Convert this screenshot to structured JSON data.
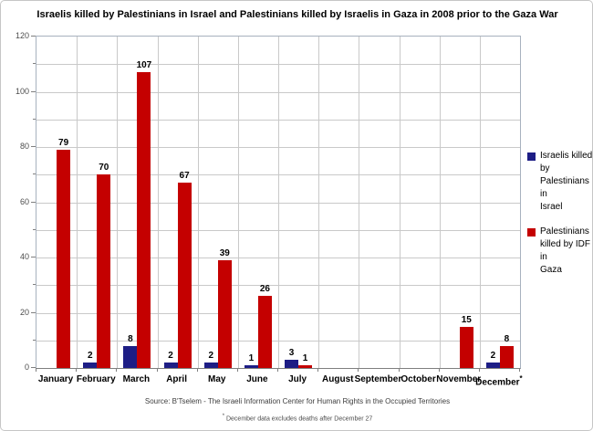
{
  "title": "Israelis killed by Palestinians in Israel and Palestinians killed by Israelis in Gaza in 2008 prior to the Gaza War",
  "chart_data": {
    "type": "bar",
    "categories": [
      "January",
      "February",
      "March",
      "April",
      "May",
      "June",
      "July",
      "August",
      "September",
      "October",
      "November",
      "December"
    ],
    "category_footnote": {
      "index": 11,
      "marker": "*"
    },
    "series": [
      {
        "name": "Israelis killed by\nPalestinians in\nIsrael",
        "color": "#1d1d85",
        "values": [
          0,
          2,
          8,
          2,
          2,
          1,
          3,
          0,
          0,
          0,
          0,
          2
        ]
      },
      {
        "name": "Palestinians\nkilled by IDF in\nGaza",
        "color": "#c40000",
        "values": [
          79,
          70,
          107,
          67,
          39,
          26,
          1,
          0,
          0,
          0,
          15,
          8
        ]
      }
    ],
    "xlabel": "",
    "ylabel": "",
    "ylim": [
      0,
      120
    ],
    "y_tick_labels": [
      0,
      20,
      40,
      60,
      80,
      100,
      120
    ],
    "y_grid_step": 10,
    "grid": true,
    "legend_position": "right",
    "data_labels": "shown above bars, zero values unlabeled"
  },
  "footer": {
    "source": "Source: B'Tselem - The Israeli Information Center for Human Rights in the Occupied Territories",
    "footnote_marker": "*",
    "footnote": "December data excludes deaths after December 27"
  }
}
